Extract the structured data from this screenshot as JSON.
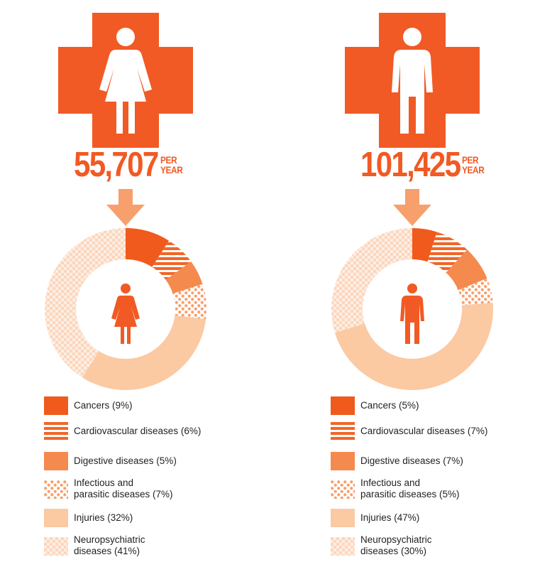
{
  "colors": {
    "cancers": "#f15a1d",
    "cardiovascular": "#f26526",
    "digestive": "#f58a4e",
    "infectious": "#f7a06d",
    "injuries": "#fbc9a2",
    "neuropsychiatric": "#fbd6bd",
    "accent": "#f15a24",
    "arrow": "#f7a06d"
  },
  "icons": {
    "cross": "medical-cross-icon",
    "female": "female-figure-icon",
    "male": "male-figure-icon",
    "arrow": "arrow-down-icon"
  },
  "panels": [
    {
      "id": "female",
      "count": "55,707",
      "per_line1": "PER",
      "per_line2": "YEAR"
    },
    {
      "id": "male",
      "count": "101,425",
      "per_line1": "PER",
      "per_line2": "YEAR"
    }
  ],
  "chart_data": [
    {
      "type": "pie",
      "variant": "donut",
      "categories": [
        "Cancers",
        "Cardiovascular diseases",
        "Digestive diseases",
        "Infectious and parasitic diseases",
        "Injuries",
        "Neuropsychiatric diseases"
      ],
      "values": [
        9,
        6,
        5,
        7,
        32,
        41
      ],
      "legend": [
        "Cancers (9%)",
        "Cardiovascular diseases (6%)",
        "Digestive diseases (5%)",
        "Infectious and\nparasitic diseases (7%)",
        "Injuries (32%)",
        "Neuropsychiatric\ndiseases (41%)"
      ]
    },
    {
      "type": "pie",
      "variant": "donut",
      "categories": [
        "Cancers",
        "Cardiovascular diseases",
        "Digestive diseases",
        "Infectious and parasitic diseases",
        "Injuries",
        "Neuropsychiatric diseases"
      ],
      "values": [
        5,
        7,
        7,
        5,
        47,
        30
      ],
      "legend": [
        "Cancers (5%)",
        "Cardiovascular diseases (7%)",
        "Digestive diseases (7%)",
        "Infectious and\nparasitic diseases (5%)",
        "Injuries (47%)",
        "Neuropsychiatric\ndiseases (30%)"
      ]
    }
  ]
}
